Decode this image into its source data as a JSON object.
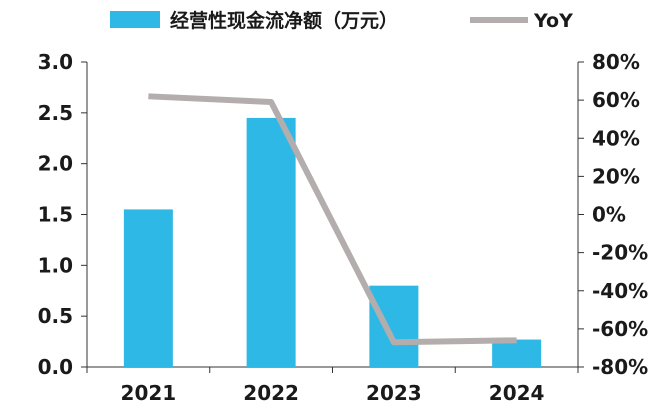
{
  "chart_data": {
    "type": "bar",
    "categories": [
      "2021",
      "2022",
      "2023",
      "2024"
    ],
    "series": [
      {
        "name": "经营性现金流净额（万元）",
        "type": "bar",
        "axis": "left",
        "color": "#2EB8E6",
        "values": [
          1.55,
          2.45,
          0.8,
          0.27
        ]
      },
      {
        "name": "YoY",
        "type": "line",
        "axis": "right",
        "color": "#B3AEAD",
        "values": [
          62,
          59,
          -67,
          -66
        ]
      }
    ],
    "y_left": {
      "ylim": [
        0,
        3.0
      ],
      "ticks": [
        "0.0",
        "0.5",
        "1.0",
        "1.5",
        "2.0",
        "2.5",
        "3.0"
      ]
    },
    "y_right": {
      "ylim": [
        -80,
        80
      ],
      "ticks": [
        "-80%",
        "-60%",
        "-40%",
        "-20%",
        "0%",
        "20%",
        "40%",
        "60%",
        "80%"
      ]
    },
    "legend": {
      "position": "top"
    },
    "grid": false
  }
}
